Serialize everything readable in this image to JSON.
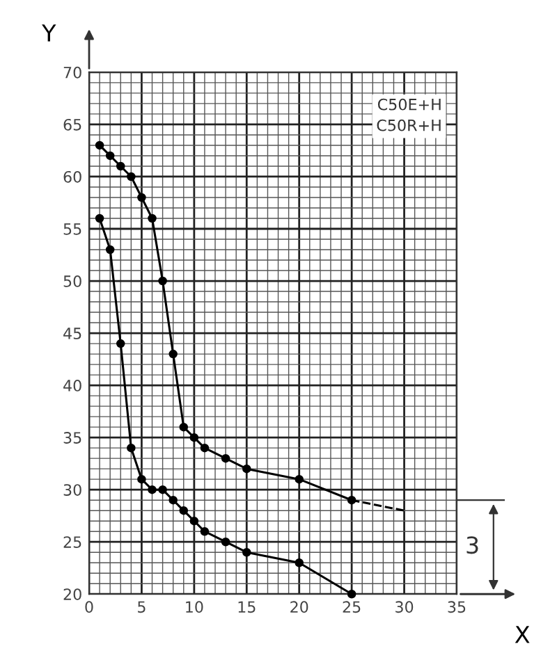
{
  "chart_data": {
    "type": "line",
    "xlabel": "X",
    "ylabel": "Y",
    "series": [
      {
        "color": "#000000",
        "x": [
          1,
          2,
          3,
          4,
          5,
          6,
          7,
          8,
          9,
          10,
          11,
          13,
          15,
          20,
          25
        ],
        "values": [
          63,
          62,
          61,
          60,
          58,
          56,
          50,
          43,
          36,
          35,
          34,
          33,
          32,
          31,
          29
        ]
      },
      {
        "color": "#000000",
        "x": [
          25,
          30
        ],
        "values": [
          29,
          28
        ],
        "line_style": "dashed",
        "marker": "none"
      },
      {
        "color": "#000000",
        "x": [
          1,
          2,
          3,
          4,
          5,
          6,
          7,
          8,
          9,
          10,
          11,
          13,
          15,
          20,
          25
        ],
        "values": [
          56,
          53,
          44,
          34,
          31,
          30,
          30,
          29,
          28,
          27,
          26,
          25,
          24,
          23,
          20
        ]
      }
    ],
    "marker": "circle",
    "line_style": "solid",
    "xlim": [
      0,
      35
    ],
    "ylim": [
      20,
      70
    ],
    "xticks": [
      0,
      5,
      10,
      15,
      20,
      25,
      30,
      35
    ],
    "yticks": [
      20,
      25,
      30,
      35,
      40,
      45,
      50,
      55,
      60,
      65,
      70
    ],
    "grid": true,
    "annotations": [
      "C50E+H",
      "C50R+H",
      "3"
    ]
  }
}
